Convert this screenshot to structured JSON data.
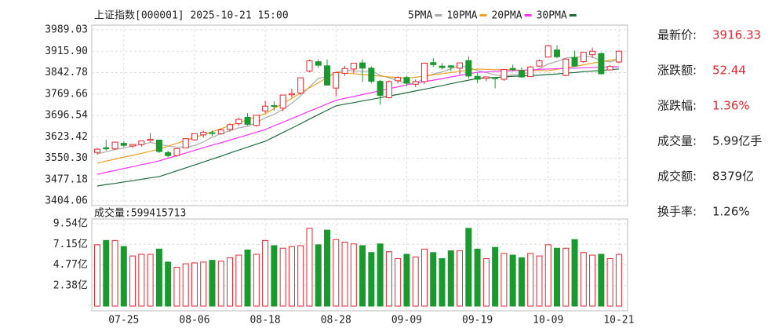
{
  "chart_data": [
    {
      "type": "candlestick",
      "title": "上证指数[000001] 2025-10-21 15:00",
      "categories": [
        null,
        null,
        null,
        "07-25",
        null,
        null,
        null,
        null,
        null,
        null,
        null,
        "08-06",
        null,
        null,
        null,
        null,
        null,
        null,
        null,
        "08-18",
        null,
        null,
        null,
        null,
        null,
        null,
        null,
        "08-28",
        null,
        null,
        null,
        null,
        null,
        null,
        null,
        "09-09",
        null,
        null,
        null,
        null,
        null,
        null,
        null,
        "09-19",
        null,
        null,
        null,
        null,
        null,
        null,
        null,
        "10-09",
        null,
        null,
        null,
        null,
        null,
        null,
        null,
        "10-21"
      ],
      "ohlc": [
        [
          3570,
          3586,
          3562,
          3581
        ],
        [
          3586,
          3613,
          3576,
          3582
        ],
        [
          3582,
          3606,
          3578,
          3605
        ],
        [
          3601,
          3608,
          3588,
          3594
        ],
        [
          3592,
          3598,
          3585,
          3597
        ],
        [
          3597,
          3610,
          3590,
          3609
        ],
        [
          3611,
          3636,
          3605,
          3615
        ],
        [
          3612,
          3613,
          3568,
          3573
        ],
        [
          3569,
          3576,
          3553,
          3559
        ],
        [
          3559,
          3583,
          3555,
          3583
        ],
        [
          3585,
          3617,
          3584,
          3617
        ],
        [
          3613,
          3634,
          3609,
          3634
        ],
        [
          3630,
          3645,
          3620,
          3639
        ],
        [
          3637,
          3645,
          3626,
          3635
        ],
        [
          3634,
          3650,
          3630,
          3647
        ],
        [
          3648,
          3669,
          3641,
          3665
        ],
        [
          3668,
          3688,
          3661,
          3683
        ],
        [
          3690,
          3704,
          3661,
          3666
        ],
        [
          3662,
          3697,
          3658,
          3697
        ],
        [
          3712,
          3746,
          3704,
          3728
        ],
        [
          3730,
          3745,
          3713,
          3727
        ],
        [
          3721,
          3766,
          3711,
          3766
        ],
        [
          3767,
          3788,
          3758,
          3771
        ],
        [
          3773,
          3825,
          3767,
          3825
        ],
        [
          3848,
          3887,
          3844,
          3883
        ],
        [
          3880,
          3888,
          3859,
          3868
        ],
        [
          3866,
          3888,
          3800,
          3800
        ],
        [
          3790,
          3844,
          3762,
          3843
        ],
        [
          3840,
          3866,
          3832,
          3857
        ],
        [
          3855,
          3876,
          3841,
          3875
        ],
        [
          3876,
          3888,
          3811,
          3858
        ],
        [
          3858,
          3864,
          3806,
          3813
        ],
        [
          3813,
          3818,
          3733,
          3765
        ],
        [
          3757,
          3816,
          3754,
          3812
        ],
        [
          3815,
          3830,
          3805,
          3826
        ],
        [
          3826,
          3832,
          3797,
          3807
        ],
        [
          3803,
          3819,
          3793,
          3812
        ],
        [
          3812,
          3877,
          3804,
          3875
        ],
        [
          3877,
          3892,
          3862,
          3870
        ],
        [
          3865,
          3875,
          3854,
          3860
        ],
        [
          3866,
          3868,
          3847,
          3861
        ],
        [
          3858,
          3876,
          3836,
          3876
        ],
        [
          3884,
          3899,
          3822,
          3831
        ],
        [
          3830,
          3842,
          3807,
          3820
        ],
        [
          3823,
          3829,
          3813,
          3828
        ],
        [
          3825,
          3825,
          3789,
          3822
        ],
        [
          3820,
          3856,
          3815,
          3853
        ],
        [
          3857,
          3870,
          3847,
          3853
        ],
        [
          3850,
          3860,
          3824,
          3828
        ],
        [
          3829,
          3866,
          3829,
          3862
        ],
        [
          3865,
          3888,
          3863,
          3883
        ],
        [
          3896,
          3937,
          3894,
          3934
        ],
        [
          3920,
          3936,
          3892,
          3897
        ],
        [
          3833,
          3890,
          3830,
          3889
        ],
        [
          3895,
          3918,
          3863,
          3865
        ],
        [
          3880,
          3913,
          3876,
          3912
        ],
        [
          3904,
          3928,
          3893,
          3916
        ],
        [
          3908,
          3912,
          3836,
          3839
        ],
        [
          3852,
          3869,
          3850,
          3864
        ],
        [
          3879,
          3917,
          3875,
          3916
        ]
      ],
      "up_color": "#e8252f",
      "down_color": "#1a9a2e",
      "series": [
        {
          "name": "5PMA",
          "color": "#aaaaaa",
          "values": [
            3565,
            3572,
            3580,
            3585,
            3592,
            3597,
            3604,
            3598,
            3591,
            3588,
            3589,
            3593,
            3606,
            3622,
            3634,
            3644,
            3654,
            3659,
            3672,
            3688,
            3700,
            3717,
            3738,
            3763,
            3794,
            3823,
            3829,
            3844,
            3850,
            3849,
            3847,
            3849,
            3834,
            3825,
            3815,
            3805,
            3804,
            3826,
            3838,
            3845,
            3856,
            3868,
            3860,
            3850,
            3843,
            3835,
            3831,
            3835,
            3837,
            3844,
            3856,
            3872,
            3881,
            3893,
            3894,
            3899,
            3896,
            3884,
            3879,
            3889
          ]
        },
        {
          "name": "10PMA",
          "color": "#f0a020",
          "values": [
            3533,
            3540,
            3547,
            3554,
            3560,
            3567,
            3574,
            3581,
            3591,
            3601,
            3611,
            3621,
            3631,
            3641,
            3651,
            3662,
            3672,
            3682,
            3692,
            3702,
            3720,
            3737,
            3755,
            3773,
            3791,
            3808,
            3826,
            3844,
            3841,
            3839,
            3836,
            3833,
            3831,
            3828,
            3826,
            3823,
            3827,
            3831,
            3835,
            3839,
            3843,
            3847,
            3851,
            3855,
            3854,
            3853,
            3853,
            3852,
            3851,
            3851,
            3850,
            3849,
            3854,
            3859,
            3864,
            3869,
            3875,
            3880,
            3885,
            3890
          ]
        },
        {
          "name": "20PMA",
          "color": "#ff30ff",
          "values": [
            3495,
            3502,
            3508,
            3515,
            3521,
            3528,
            3534,
            3541,
            3550,
            3559,
            3568,
            3577,
            3586,
            3595,
            3603,
            3612,
            3621,
            3630,
            3639,
            3648,
            3661,
            3673,
            3686,
            3698,
            3711,
            3723,
            3736,
            3748,
            3755,
            3761,
            3768,
            3774,
            3781,
            3788,
            3794,
            3801,
            3806,
            3812,
            3817,
            3822,
            3828,
            3833,
            3839,
            3844,
            3845,
            3847,
            3848,
            3849,
            3851,
            3852,
            3854,
            3855,
            3856,
            3857,
            3858,
            3859,
            3860,
            3861,
            3862,
            3863
          ]
        },
        {
          "name": "30PMA",
          "color": "#1e6b3a",
          "values": [
            3455,
            3460,
            3464,
            3469,
            3473,
            3478,
            3483,
            3487,
            3497,
            3507,
            3517,
            3527,
            3537,
            3547,
            3557,
            3568,
            3578,
            3588,
            3598,
            3608,
            3623,
            3638,
            3653,
            3668,
            3684,
            3699,
            3714,
            3729,
            3735,
            3740,
            3746,
            3751,
            3757,
            3763,
            3768,
            3774,
            3780,
            3786,
            3792,
            3798,
            3805,
            3811,
            3817,
            3823,
            3825,
            3826,
            3828,
            3830,
            3831,
            3833,
            3834,
            3836,
            3838,
            3841,
            3843,
            3846,
            3848,
            3850,
            3853,
            3855
          ]
        }
      ],
      "ylim": [
        3404.06,
        3989.03
      ],
      "yticks": [
        3404.06,
        3477.18,
        {
          "value": 3550.3,
          "label": "3550.30"
        },
        3623.42,
        3696.54,
        3769.66,
        3842.78,
        {
          "value": 3915.9,
          "label": "3915.90"
        },
        3989.03
      ],
      "grid": true
    },
    {
      "type": "bar",
      "title": "成交量:599415713",
      "values": [
        7.1,
        7.6,
        7.6,
        6.9,
        5.8,
        6.0,
        6.0,
        6.6,
        5.1,
        4.5,
        4.9,
        5.0,
        5.1,
        5.3,
        5.2,
        5.6,
        5.9,
        6.5,
        6.0,
        7.6,
        7.0,
        6.7,
        6.9,
        7.0,
        9.0,
        7.1,
        8.8,
        7.7,
        7.4,
        7.2,
        7.0,
        6.2,
        7.2,
        6.3,
        5.5,
        6.0,
        5.7,
        6.6,
        6.2,
        5.5,
        6.4,
        6.4,
        9.0,
        6.6,
        5.5,
        6.8,
        6.1,
        5.9,
        5.6,
        6.1,
        5.8,
        7.1,
        6.7,
        6.7,
        7.7,
        6.2,
        5.9,
        6.0,
        5.5,
        5.99
      ],
      "ylim": [
        0,
        9.54
      ],
      "yticks": [
        {
          "value": 2.38,
          "label": "2.38亿"
        },
        {
          "value": 4.77,
          "label": "4.77亿"
        },
        {
          "value": 7.15,
          "label": "7.15亿"
        },
        {
          "value": 9.54,
          "label": "9.54亿"
        }
      ],
      "grid": true
    }
  ],
  "stats": [
    {
      "label": "最新价:",
      "value": "3916.33"
    },
    {
      "label": "涨跌额:",
      "value": "52.44"
    },
    {
      "label": "涨跌幅:",
      "value": "1.36%"
    },
    {
      "label": "成交量:",
      "value": "5.99亿手"
    },
    {
      "label": "成交额:",
      "value": "8379亿"
    },
    {
      "label": "换手率:",
      "value": "1.26%"
    }
  ]
}
